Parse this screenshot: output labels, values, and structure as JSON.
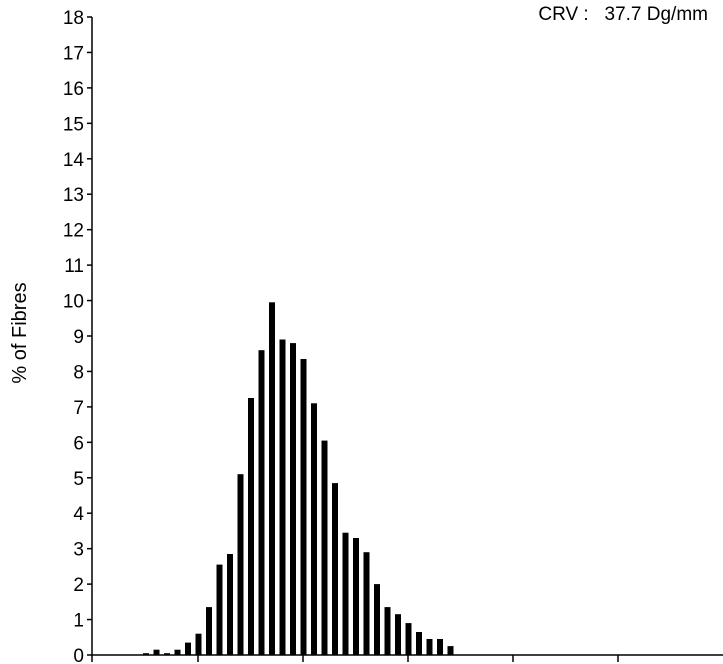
{
  "chart_data": {
    "type": "bar",
    "ylabel": "% of Fibres",
    "xlabel": "",
    "ylim": [
      0,
      18
    ],
    "yticks": [
      "0",
      "1",
      "2",
      "3",
      "4",
      "5",
      "6",
      "7",
      "8",
      "9",
      "10",
      "11",
      "12",
      "13",
      "14",
      "15",
      "16",
      "17",
      "18"
    ],
    "annotation": "CRV :   37.7 Dg/mm",
    "grid": false,
    "bar_color": "#000000",
    "values": [
      0.05,
      0.15,
      0.05,
      0.15,
      0.35,
      0.6,
      1.35,
      2.55,
      2.85,
      5.1,
      7.25,
      8.6,
      9.95,
      8.9,
      8.8,
      8.35,
      7.1,
      6.05,
      4.85,
      3.45,
      3.3,
      2.9,
      2.0,
      1.35,
      1.15,
      0.9,
      0.65,
      0.45,
      0.45,
      0.25
    ]
  }
}
